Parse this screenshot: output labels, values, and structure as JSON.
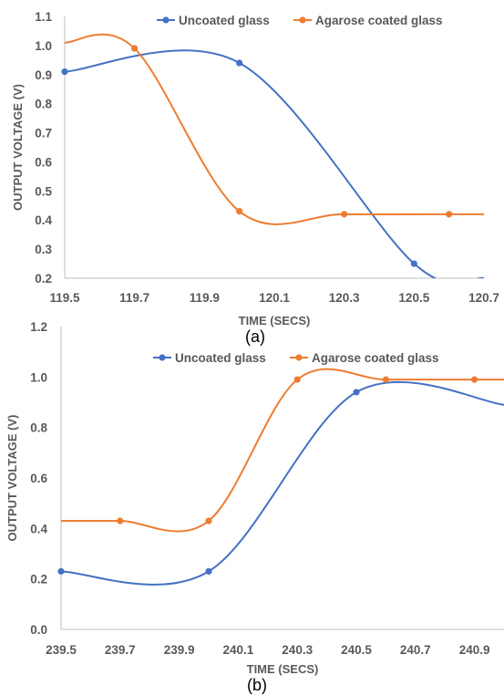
{
  "captions": [
    "(a)",
    "(b)"
  ],
  "chart_data": [
    {
      "type": "line",
      "smooth": true,
      "xlabel": "TIME (SECS)",
      "ylabel": "OUTPUT VOLTAGE (V)",
      "xlim": [
        119.5,
        120.7
      ],
      "ylim": [
        0.2,
        1.1
      ],
      "xticks": [
        "119.5",
        "119.7",
        "119.9",
        "120.1",
        "120.3",
        "120.5",
        "120.7"
      ],
      "yticks": [
        "0.2",
        "0.3",
        "0.4",
        "0.5",
        "0.6",
        "0.7",
        "0.8",
        "0.9",
        "1.0",
        "1.1"
      ],
      "grid": false,
      "legend_position": "top",
      "series": [
        {
          "name": "Uncoated glass",
          "color": "#4472C4",
          "x": [
            119.5,
            120.0,
            120.5,
            120.7
          ],
          "y": [
            0.91,
            0.94,
            0.25,
            0.2
          ],
          "markers": [
            true,
            true,
            true,
            false
          ]
        },
        {
          "name": "Agarose coated glass",
          "color": "#ED7D31",
          "x": [
            119.5,
            119.7,
            120.0,
            120.3,
            120.6,
            120.7
          ],
          "y": [
            1.01,
            0.99,
            0.43,
            0.42,
            0.42,
            0.42
          ],
          "markers": [
            false,
            true,
            true,
            true,
            true,
            false
          ]
        }
      ]
    },
    {
      "type": "line",
      "smooth": true,
      "xlabel": "TIME (SECS)",
      "ylabel": "OUTPUT VOLTAGE (V)",
      "xlim": [
        239.5,
        241.0
      ],
      "ylim": [
        0.0,
        1.2
      ],
      "xticks": [
        "239.5",
        "239.7",
        "239.9",
        "240.1",
        "240.3",
        "240.5",
        "240.7",
        "240.9"
      ],
      "yticks": [
        "0.0",
        "0.2",
        "0.4",
        "0.6",
        "0.8",
        "1.0",
        "1.2"
      ],
      "grid": false,
      "legend_position": "top",
      "series": [
        {
          "name": "Uncoated glass",
          "color": "#4472C4",
          "x": [
            239.5,
            240.0,
            240.5,
            241.0
          ],
          "y": [
            0.23,
            0.23,
            0.94,
            0.89
          ],
          "markers": [
            true,
            true,
            true,
            false
          ]
        },
        {
          "name": "Agarose coated glass",
          "color": "#ED7D31",
          "x": [
            239.5,
            239.7,
            240.0,
            240.3,
            240.6,
            240.9,
            241.0
          ],
          "y": [
            0.43,
            0.43,
            0.43,
            0.99,
            0.99,
            0.99,
            0.99
          ],
          "markers": [
            false,
            true,
            true,
            true,
            true,
            true,
            false
          ]
        }
      ]
    }
  ]
}
